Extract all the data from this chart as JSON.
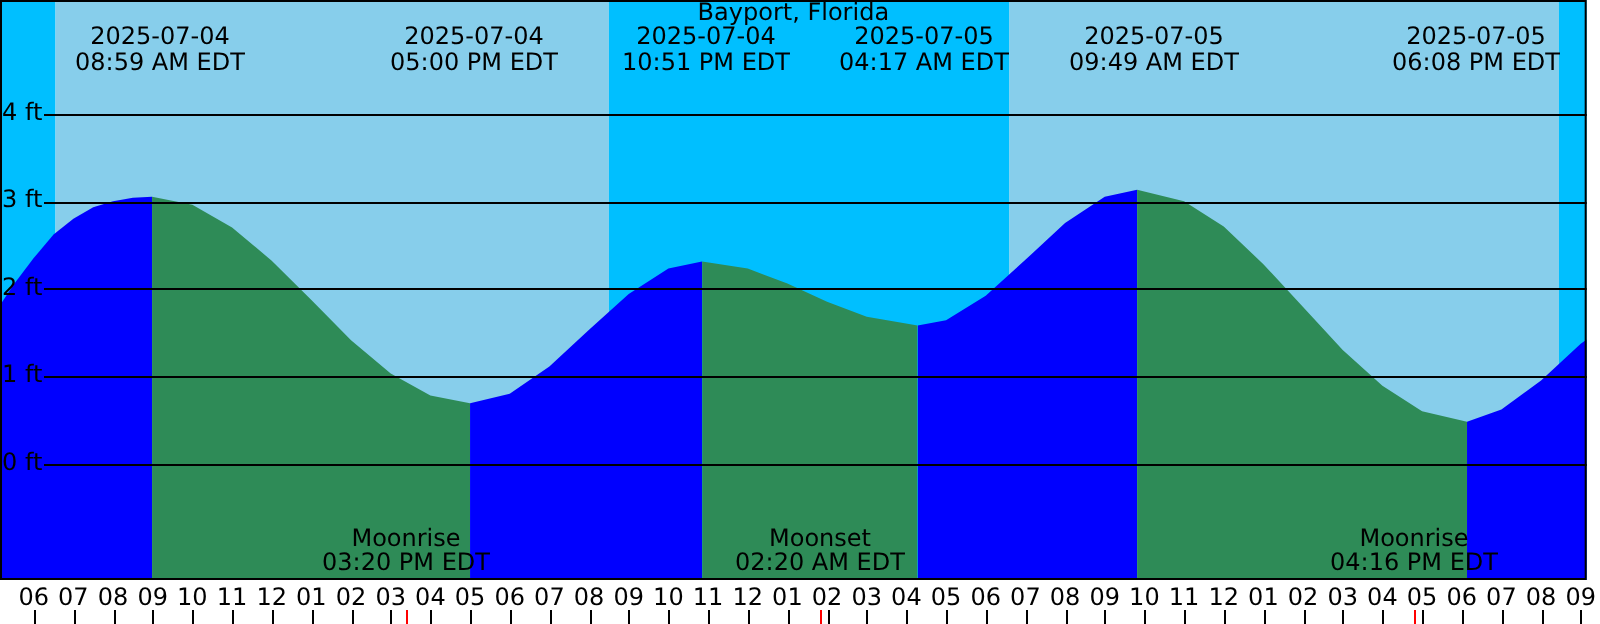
{
  "chart_data": {
    "type": "area",
    "title": "Bayport, Florida",
    "series": [
      {
        "color": "#0000ff",
        "x": [
          "2025-07-04T05:09",
          "2025-07-04T05:30",
          "2025-07-04T06:00",
          "2025-07-04T06:30",
          "2025-07-04T07:00",
          "2025-07-04T07:30",
          "2025-07-04T08:00",
          "2025-07-04T08:30",
          "2025-07-04T08:59"
        ],
        "values": [
          1.81,
          2.05,
          2.35,
          2.62,
          2.8,
          2.93,
          3.0,
          3.04,
          3.05
        ]
      },
      {
        "color": "#2e8b57",
        "x": [
          "2025-07-04T08:59",
          "2025-07-04T10:00",
          "2025-07-04T11:00",
          "2025-07-04T12:00",
          "2025-07-04T13:00",
          "2025-07-04T14:00",
          "2025-07-04T15:00",
          "2025-07-04T16:00",
          "2025-07-04T17:00"
        ],
        "values": [
          3.05,
          2.96,
          2.7,
          2.32,
          1.87,
          1.41,
          1.03,
          0.78,
          0.69
        ]
      },
      {
        "color": "#0000ff",
        "x": [
          "2025-07-04T17:00",
          "2025-07-04T18:00",
          "2025-07-04T19:00",
          "2025-07-04T20:00",
          "2025-07-04T21:00",
          "2025-07-04T22:00",
          "2025-07-04T22:51"
        ],
        "values": [
          0.69,
          0.8,
          1.11,
          1.53,
          1.94,
          2.23,
          2.31
        ]
      },
      {
        "color": "#2e8b57",
        "x": [
          "2025-07-04T22:51",
          "2025-07-05T00:00",
          "2025-07-05T01:00",
          "2025-07-05T02:00",
          "2025-07-05T03:00",
          "2025-07-05T04:17"
        ],
        "values": [
          2.31,
          2.23,
          2.06,
          1.85,
          1.68,
          1.58
        ]
      },
      {
        "color": "#0000ff",
        "x": [
          "2025-07-05T04:17",
          "2025-07-05T05:00",
          "2025-07-05T06:00",
          "2025-07-05T07:00",
          "2025-07-05T08:00",
          "2025-07-05T09:00",
          "2025-07-05T09:49"
        ],
        "values": [
          1.58,
          1.64,
          1.92,
          2.33,
          2.75,
          3.05,
          3.13
        ]
      },
      {
        "color": "#2e8b57",
        "x": [
          "2025-07-05T09:49",
          "2025-07-05T11:00",
          "2025-07-05T12:00",
          "2025-07-05T13:00",
          "2025-07-05T14:00",
          "2025-07-05T15:00",
          "2025-07-05T16:00",
          "2025-07-05T17:00",
          "2025-07-05T18:08"
        ],
        "values": [
          3.13,
          3.0,
          2.71,
          2.28,
          1.79,
          1.3,
          0.89,
          0.6,
          0.48
        ]
      },
      {
        "color": "#0000ff",
        "x": [
          "2025-07-05T18:08",
          "2025-07-05T19:00",
          "2025-07-05T20:00",
          "2025-07-05T21:00",
          "2025-07-05T21:09"
        ],
        "values": [
          0.48,
          0.62,
          0.95,
          1.37,
          1.42
        ]
      }
    ],
    "xlim": [
      "2025-07-04T05:09",
      "2025-07-05T21:09"
    ],
    "ylim": [
      -1.33,
      5.3
    ],
    "xticks": [
      {
        "value": "2025-07-04T06:00",
        "label": "06"
      },
      {
        "value": "2025-07-04T07:00",
        "label": "07"
      },
      {
        "value": "2025-07-04T08:00",
        "label": "08"
      },
      {
        "value": "2025-07-04T09:00",
        "label": "09"
      },
      {
        "value": "2025-07-04T10:00",
        "label": "10"
      },
      {
        "value": "2025-07-04T11:00",
        "label": "11"
      },
      {
        "value": "2025-07-04T12:00",
        "label": "12"
      },
      {
        "value": "2025-07-04T13:00",
        "label": "01"
      },
      {
        "value": "2025-07-04T14:00",
        "label": "02"
      },
      {
        "value": "2025-07-04T15:00",
        "label": "03"
      },
      {
        "value": "2025-07-04T16:00",
        "label": "04"
      },
      {
        "value": "2025-07-04T17:00",
        "label": "05"
      },
      {
        "value": "2025-07-04T18:00",
        "label": "06"
      },
      {
        "value": "2025-07-04T19:00",
        "label": "07"
      },
      {
        "value": "2025-07-04T20:00",
        "label": "08"
      },
      {
        "value": "2025-07-04T21:00",
        "label": "09"
      },
      {
        "value": "2025-07-04T22:00",
        "label": "10"
      },
      {
        "value": "2025-07-04T23:00",
        "label": "11"
      },
      {
        "value": "2025-07-05T00:00",
        "label": "12"
      },
      {
        "value": "2025-07-05T01:00",
        "label": "01"
      },
      {
        "value": "2025-07-05T02:00",
        "label": "02"
      },
      {
        "value": "2025-07-05T03:00",
        "label": "03"
      },
      {
        "value": "2025-07-05T04:00",
        "label": "04"
      },
      {
        "value": "2025-07-05T05:00",
        "label": "05"
      },
      {
        "value": "2025-07-05T06:00",
        "label": "06"
      },
      {
        "value": "2025-07-05T07:00",
        "label": "07"
      },
      {
        "value": "2025-07-05T08:00",
        "label": "08"
      },
      {
        "value": "2025-07-05T09:00",
        "label": "09"
      },
      {
        "value": "2025-07-05T10:00",
        "label": "10"
      },
      {
        "value": "2025-07-05T11:00",
        "label": "11"
      },
      {
        "value": "2025-07-05T12:00",
        "label": "12"
      },
      {
        "value": "2025-07-05T13:00",
        "label": "01"
      },
      {
        "value": "2025-07-05T14:00",
        "label": "02"
      },
      {
        "value": "2025-07-05T15:00",
        "label": "03"
      },
      {
        "value": "2025-07-05T16:00",
        "label": "04"
      },
      {
        "value": "2025-07-05T17:00",
        "label": "05"
      },
      {
        "value": "2025-07-05T18:00",
        "label": "06"
      },
      {
        "value": "2025-07-05T19:00",
        "label": "07"
      },
      {
        "value": "2025-07-05T20:00",
        "label": "08"
      },
      {
        "value": "2025-07-05T21:00",
        "label": "09"
      }
    ],
    "yticks": [
      {
        "value": 0,
        "label": "0 ft"
      },
      {
        "value": 1,
        "label": "1 ft"
      },
      {
        "value": 2,
        "label": "2 ft"
      },
      {
        "value": 3,
        "label": "3 ft"
      },
      {
        "value": 4,
        "label": "4 ft"
      }
    ],
    "grid": "y",
    "legend": false,
    "bands": [
      {
        "axis": "x",
        "from": "2025-07-04T05:09",
        "to": "2025-07-04T06:33",
        "color": "#00bfff"
      },
      {
        "axis": "x",
        "from": "2025-07-04T06:33",
        "to": "2025-07-04T20:30",
        "color": "#87ceeb"
      },
      {
        "axis": "x",
        "from": "2025-07-04T20:30",
        "to": "2025-07-05T06:36",
        "color": "#00bfff"
      },
      {
        "axis": "x",
        "from": "2025-07-05T06:36",
        "to": "2025-07-05T20:27",
        "color": "#87ceeb"
      },
      {
        "axis": "x",
        "from": "2025-07-05T20:27",
        "to": "2025-07-05T21:09",
        "color": "#00bfff"
      }
    ],
    "annotations": [
      "2025-07-04\n08:59 AM EDT",
      "2025-07-04\n05:00 PM EDT",
      "2025-07-04\n10:51 PM EDT",
      "2025-07-05\n04:17 AM EDT",
      "2025-07-05\n09:49 AM EDT",
      "2025-07-05\n06:08 PM EDT",
      "Moonrise\n03:20 PM EDT",
      "Moonset\n02:20 AM EDT",
      "Moonrise\n04:16 PM EDT"
    ]
  }
}
